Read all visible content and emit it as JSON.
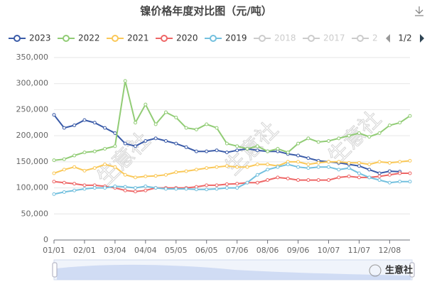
{
  "chart_data": {
    "type": "line",
    "title": "镍价格年度对比图（元/吨）",
    "categories": [
      "01/01",
      null,
      null,
      "02/01",
      null,
      null,
      "03/04",
      null,
      null,
      "04/04",
      null,
      null,
      "05/05",
      null,
      null,
      "06/05",
      null,
      null,
      "07/06",
      null,
      null,
      "08/06",
      null,
      null,
      "09/06",
      null,
      null,
      "10/07",
      null,
      null,
      "11/07",
      null,
      null,
      "12/08",
      null,
      null
    ],
    "series": [
      {
        "name": "2023",
        "color": "#3a5ba8",
        "values": [
          240000,
          215000,
          220000,
          230000,
          225000,
          215000,
          205000,
          185000,
          180000,
          190000,
          195000,
          190000,
          185000,
          178000,
          170000,
          170000,
          172000,
          168000,
          172000,
          175000,
          172000,
          170000,
          170000,
          165000,
          162000,
          157000,
          152000,
          150000,
          148000,
          145000,
          142000,
          135000,
          128000,
          132000,
          131000,
          null
        ]
      },
      {
        "name": "2022",
        "color": "#91cc75",
        "values": [
          153000,
          155000,
          162000,
          168000,
          170000,
          175000,
          180000,
          305000,
          225000,
          260000,
          222000,
          245000,
          235000,
          215000,
          212000,
          222000,
          215000,
          185000,
          180000,
          175000,
          180000,
          170000,
          175000,
          168000,
          185000,
          195000,
          188000,
          190000,
          195000,
          200000,
          205000,
          198000,
          205000,
          220000,
          225000,
          238000
        ]
      },
      {
        "name": "2021",
        "color": "#fac858",
        "values": [
          128000,
          135000,
          140000,
          133000,
          138000,
          145000,
          140000,
          125000,
          120000,
          122000,
          123000,
          125000,
          130000,
          132000,
          135000,
          138000,
          140000,
          142000,
          140000,
          140000,
          145000,
          145000,
          142000,
          150000,
          150000,
          145000,
          148000,
          150000,
          150000,
          148000,
          148000,
          145000,
          150000,
          148000,
          150000,
          152000
        ]
      },
      {
        "name": "2020",
        "color": "#ee6666",
        "values": [
          112000,
          110000,
          108000,
          105000,
          105000,
          103000,
          100000,
          95000,
          93000,
          95000,
          100000,
          100000,
          100000,
          100000,
          102000,
          105000,
          105000,
          107000,
          108000,
          110000,
          110000,
          115000,
          120000,
          118000,
          115000,
          115000,
          115000,
          115000,
          120000,
          122000,
          120000,
          120000,
          122000,
          125000,
          128000,
          128000
        ]
      },
      {
        "name": "2019",
        "color": "#73c0de",
        "values": [
          88000,
          92000,
          95000,
          98000,
          100000,
          100000,
          103000,
          102000,
          100000,
          103000,
          100000,
          98000,
          98000,
          98000,
          97000,
          97000,
          98000,
          100000,
          100000,
          110000,
          125000,
          135000,
          140000,
          145000,
          140000,
          138000,
          140000,
          140000,
          135000,
          138000,
          128000,
          120000,
          115000,
          110000,
          112000,
          112000
        ]
      }
    ],
    "hidden_legend": [
      "2018",
      "2017",
      "2"
    ],
    "legend_page": "1/2",
    "ylim": [
      0,
      350000
    ],
    "yticks": [
      0,
      {
        "value": 50000,
        "label": "50,000"
      },
      {
        "value": 100000,
        "label": "100,000"
      },
      {
        "value": 150000,
        "label": "150,000"
      },
      {
        "value": 200000,
        "label": "200,000"
      },
      {
        "value": 250000,
        "label": "250,000"
      },
      {
        "value": 300000,
        "label": "300,000"
      },
      {
        "value": 350000,
        "label": "350,000"
      }
    ],
    "grid": true,
    "watermark": "生意社",
    "logo": "生意社"
  }
}
